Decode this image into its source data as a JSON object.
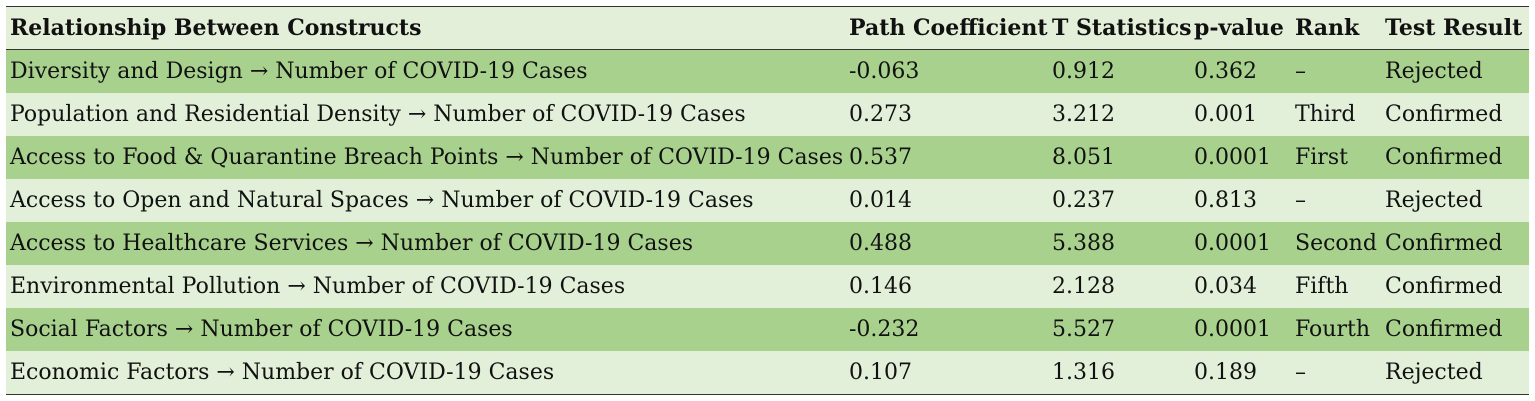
{
  "headers": [
    "Relationship Between Constructs",
    "Path Coefficient",
    "T Statistics",
    "p-value",
    "Rank",
    "Test Result"
  ],
  "rows": [
    {
      "relationship": "Diversity and Design → Number of COVID-19 Cases",
      "path": "-0.063",
      "t": "0.912",
      "p": "0.362",
      "rank": "–",
      "result": "Rejected"
    },
    {
      "relationship": "Population and Residential Density → Number of COVID-19 Cases",
      "path": "0.273",
      "t": "3.212",
      "p": "0.001",
      "rank": "Third",
      "result": "Confirmed"
    },
    {
      "relationship": "Access to Food & Quarantine Breach Points → Number of COVID-19 Cases",
      "path": "0.537",
      "t": "8.051",
      "p": "0.0001",
      "rank": "First",
      "result": "Confirmed"
    },
    {
      "relationship": "Access to Open and Natural Spaces → Number of COVID-19 Cases",
      "path": "0.014",
      "t": "0.237",
      "p": "0.813",
      "rank": "–",
      "result": "Rejected"
    },
    {
      "relationship": "Access to Healthcare Services → Number of COVID-19 Cases",
      "path": "0.488",
      "t": "5.388",
      "p": "0.0001",
      "rank": "Second",
      "result": "Confirmed"
    },
    {
      "relationship": "Environmental Pollution → Number of COVID-19 Cases",
      "path": "0.146",
      "t": "2.128",
      "p": "0.034",
      "rank": "Fifth",
      "result": "Confirmed"
    },
    {
      "relationship": "Social Factors → Number of COVID-19 Cases",
      "path": "-0.232",
      "t": "5.527",
      "p": "0.0001",
      "rank": "Fourth",
      "result": "Confirmed"
    },
    {
      "relationship": "Economic Factors → Number of COVID-19 Cases",
      "path": "0.107",
      "t": "1.316",
      "p": "0.189",
      "rank": "–",
      "result": "Rejected"
    }
  ],
  "colors": {
    "header_bg": "#e3efd8",
    "row_dark": "#a9d18e",
    "row_light": "#e2efd9"
  }
}
